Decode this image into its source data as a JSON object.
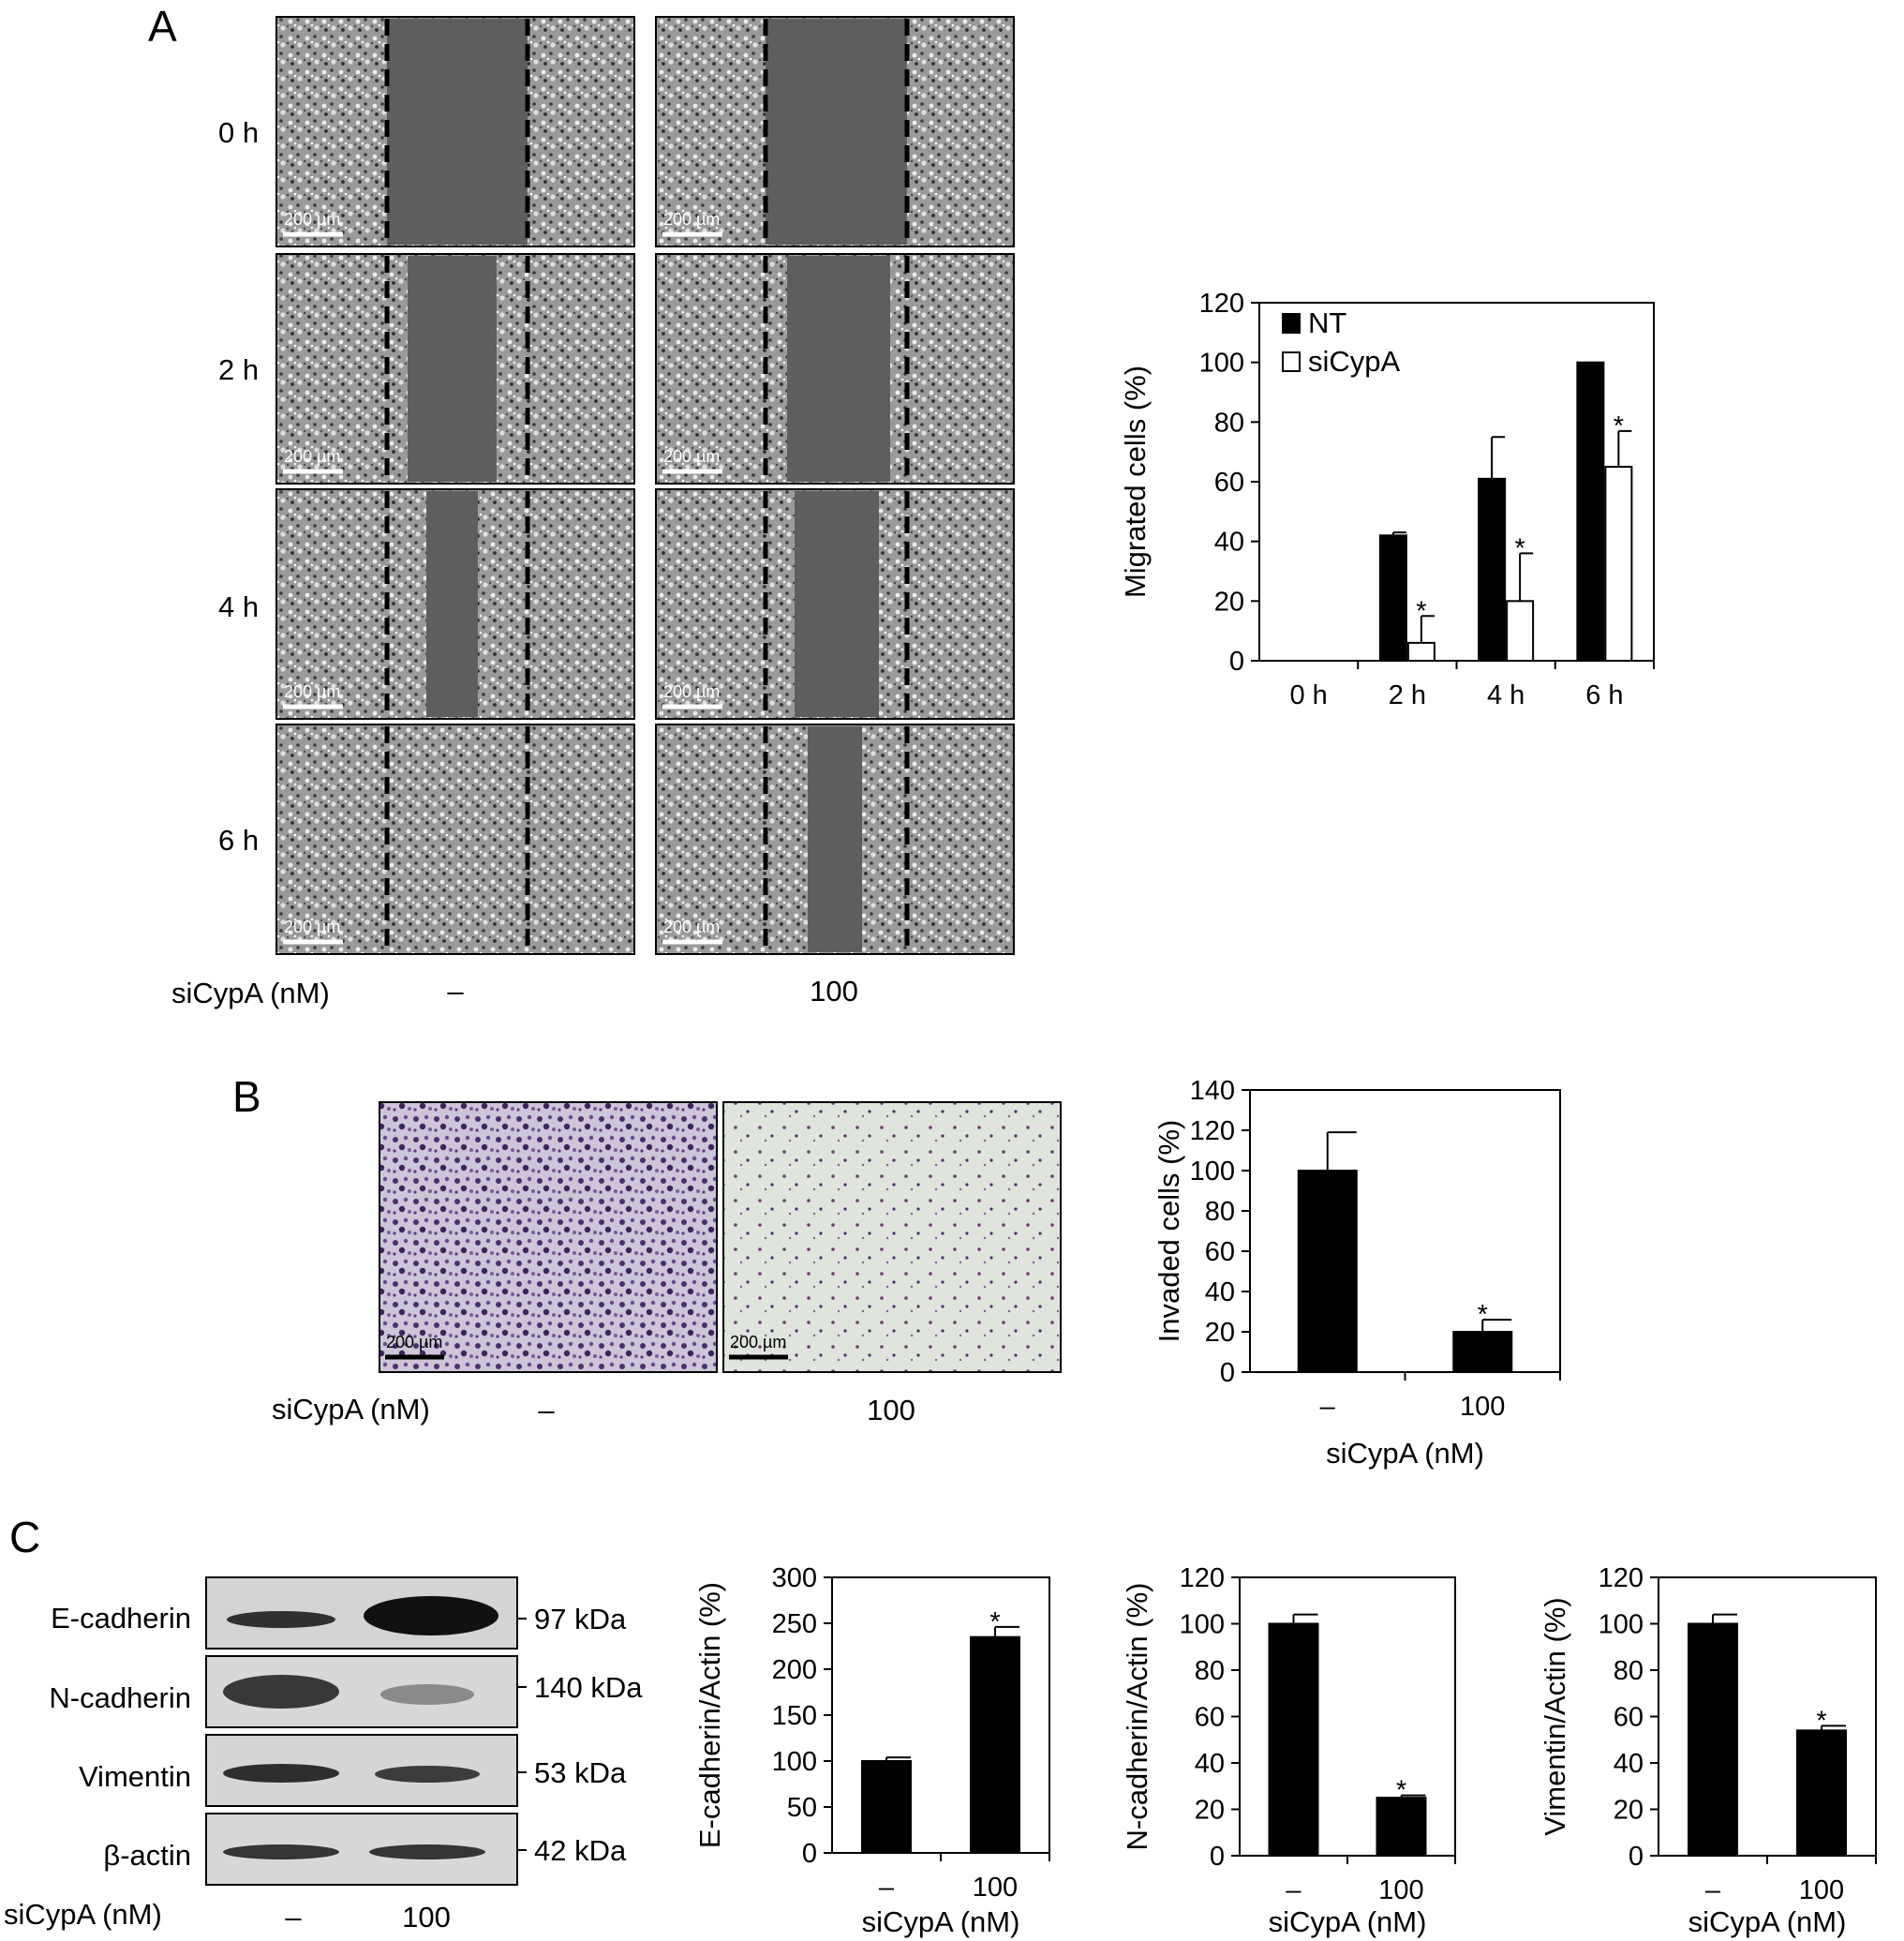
{
  "panels": {
    "A": {
      "letter": "A",
      "row_labels": [
        "0 h",
        "2 h",
        "4 h",
        "6 h"
      ],
      "scale_bar": "200 µm",
      "treatment_label": "siCypA (nM)",
      "column_labels": [
        "–",
        "100"
      ]
    },
    "B": {
      "letter": "B",
      "scale_bar": "200 µm",
      "treatment_label": "siCypA (nM)",
      "column_labels": [
        "–",
        "100"
      ]
    },
    "C": {
      "letter": "C",
      "bands": [
        {
          "name": "E-cadherin",
          "kda": "97 kDa"
        },
        {
          "name": "N-cadherin",
          "kda": "140 kDa"
        },
        {
          "name": "Vimentin",
          "kda": "53 kDa"
        },
        {
          "name": "β-actin",
          "kda": "42 kDa"
        }
      ],
      "treatment_label": "siCypA (nM)",
      "column_labels": [
        "–",
        "100"
      ]
    }
  },
  "colors": {
    "bar_fill": "#000000",
    "open_bar_fill": "#ffffff",
    "micrograph_cells": "#8c8c8c",
    "scratch_gap": "#5e5e5e",
    "transwell_stain": "#4b2f6b"
  },
  "chart_data": [
    {
      "id": "migration",
      "type": "bar",
      "categories": [
        "0 h",
        "2 h",
        "4 h",
        "6 h"
      ],
      "series": [
        {
          "name": "NT",
          "values": [
            0,
            42,
            61,
            100
          ],
          "errors": [
            0,
            1,
            14,
            0
          ],
          "fill": "#000000"
        },
        {
          "name": "siCypA",
          "values": [
            0,
            6,
            20,
            65
          ],
          "errors": [
            0,
            9,
            16,
            12
          ],
          "fill": "#ffffff"
        }
      ],
      "significance": [
        {
          "series": "siCypA",
          "category": "2 h",
          "mark": "*"
        },
        {
          "series": "siCypA",
          "category": "4 h",
          "mark": "*"
        },
        {
          "series": "siCypA",
          "category": "6 h",
          "mark": "*"
        }
      ],
      "xlabel": "",
      "ylabel": "Migrated cells (%)",
      "ylim": [
        0,
        120
      ],
      "yticks": [
        0,
        20,
        40,
        60,
        80,
        100,
        120
      ],
      "legend": "top-left"
    },
    {
      "id": "invasion",
      "type": "bar",
      "categories": [
        "–",
        "100"
      ],
      "values": [
        100,
        20
      ],
      "errors": [
        19,
        6
      ],
      "significance": [
        {
          "category": "100",
          "mark": "*"
        }
      ],
      "xlabel": "siCypA (nM)",
      "ylabel": "Invaded cells (%)",
      "ylim": [
        0,
        140
      ],
      "yticks": [
        0,
        20,
        40,
        60,
        80,
        100,
        120,
        140
      ]
    },
    {
      "id": "ecad",
      "type": "bar",
      "categories": [
        "–",
        "100"
      ],
      "values": [
        100,
        235
      ],
      "errors": [
        4,
        11
      ],
      "significance": [
        {
          "category": "100",
          "mark": "*"
        }
      ],
      "xlabel": "siCypA (nM)",
      "ylabel": "E-cadherin/Actin (%)",
      "ylim": [
        0,
        300
      ],
      "yticks": [
        0,
        50,
        100,
        150,
        200,
        250,
        300
      ]
    },
    {
      "id": "ncad",
      "type": "bar",
      "categories": [
        "–",
        "100"
      ],
      "values": [
        100,
        25
      ],
      "errors": [
        4,
        1
      ],
      "significance": [
        {
          "category": "100",
          "mark": "*"
        }
      ],
      "xlabel": "siCypA (nM)",
      "ylabel": "N-cadherin/Actin (%)",
      "ylim": [
        0,
        120
      ],
      "yticks": [
        0,
        20,
        40,
        60,
        80,
        100,
        120
      ]
    },
    {
      "id": "vim",
      "type": "bar",
      "categories": [
        "–",
        "100"
      ],
      "values": [
        100,
        54
      ],
      "errors": [
        4,
        2
      ],
      "significance": [
        {
          "category": "100",
          "mark": "*"
        }
      ],
      "xlabel": "siCypA (nM)",
      "ylabel": "Vimentin/Actin (%)",
      "ylim": [
        0,
        120
      ],
      "yticks": [
        0,
        20,
        40,
        60,
        80,
        100,
        120
      ]
    }
  ]
}
